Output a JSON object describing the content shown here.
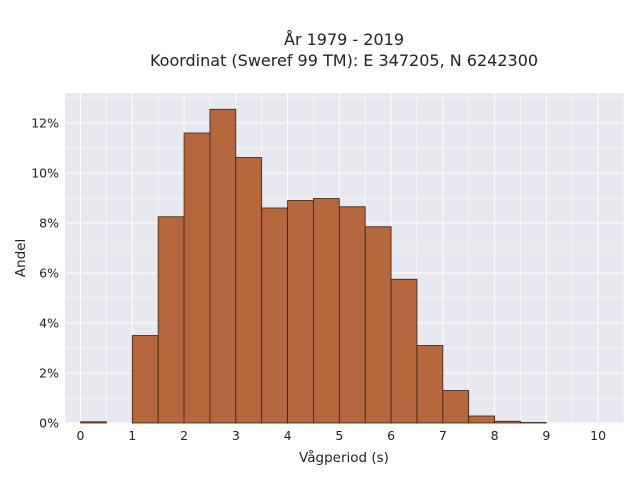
{
  "chart_data": {
    "type": "bar",
    "title_line1": "År 1979 - 2019",
    "title_line2": "Koordinat (Sweref 99 TM): E 347205, N 6242300",
    "xlabel": "Vågperiod (s)",
    "ylabel": "Andel",
    "bin_width": 0.5,
    "bins_start": [
      0.0,
      0.5,
      1.0,
      1.5,
      2.0,
      2.5,
      3.0,
      3.5,
      4.0,
      4.5,
      5.0,
      5.5,
      6.0,
      6.5,
      7.0,
      7.5,
      8.0,
      8.5,
      9.0,
      9.5
    ],
    "values": [
      0.05,
      0.0,
      3.5,
      8.25,
      11.6,
      12.55,
      10.62,
      8.6,
      8.9,
      8.98,
      8.65,
      7.85,
      5.75,
      3.1,
      1.3,
      0.28,
      0.07,
      0.02,
      0.0,
      0.0
    ],
    "xlim": [
      -0.3,
      10.5
    ],
    "ylim": [
      0,
      13.2
    ],
    "xticks": [
      0,
      1,
      2,
      3,
      4,
      5,
      6,
      7,
      8,
      9,
      10
    ],
    "xtick_labels": [
      "0",
      "1",
      "2",
      "3",
      "4",
      "5",
      "6",
      "7",
      "8",
      "9",
      "10"
    ],
    "yticks": [
      0,
      2,
      4,
      6,
      8,
      10,
      12
    ],
    "ytick_labels": [
      "0%",
      "2%",
      "4%",
      "6%",
      "8%",
      "10%",
      "12%"
    ],
    "grid": true,
    "colors": {
      "bar_fill": "#b5673d",
      "bar_stroke": "#3a2415",
      "plot_background": "#e8e8f1",
      "grid": "#ffffff"
    }
  }
}
